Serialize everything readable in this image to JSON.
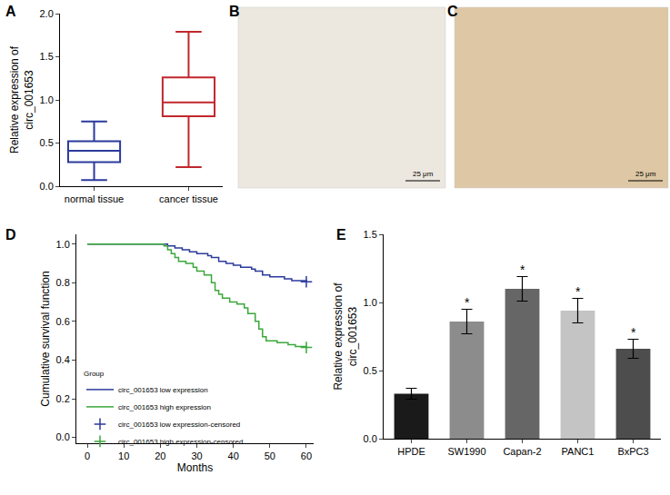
{
  "chart_data": [
    {
      "type": "box",
      "title": "A",
      "y_label": "Relative expression of\ncirc_001653",
      "categories": [
        "normal tissue",
        "cancer tissue"
      ],
      "series": [
        {
          "name": "normal tissue",
          "color": "#2b3a9c",
          "min": 0.07,
          "q1": 0.28,
          "median": 0.41,
          "q3": 0.52,
          "max": 0.75
        },
        {
          "name": "cancer tissue",
          "color": "#c1272d",
          "min": 0.22,
          "q1": 0.81,
          "median": 0.97,
          "q3": 1.26,
          "max": 1.79
        }
      ],
      "ylim": [
        0,
        2.0
      ],
      "yticks": [
        {
          "value": 0,
          "label": "0.0"
        },
        {
          "value": 0.5,
          "label": "0.5"
        },
        {
          "value": 1.0,
          "label": "1.0"
        },
        {
          "value": 1.5,
          "label": "1.5"
        },
        {
          "value": 2.0,
          "label": "2.0"
        }
      ]
    },
    {
      "type": "image",
      "title": "B",
      "scale_bar": "25 μm",
      "color": "#ece7df"
    },
    {
      "type": "image",
      "title": "C",
      "scale_bar": "25 μm",
      "color": "#ddc7a4"
    },
    {
      "type": "line",
      "title": "D",
      "x_label": "Months",
      "y_label": "Cumulative survival function",
      "legend": "lower left",
      "legend_title": "Group",
      "series": [
        {
          "name": "circ_001653 low expression",
          "color": "#2b3a9c",
          "line_style": "step",
          "x": [
            0,
            21,
            22,
            24,
            26,
            28,
            30,
            33,
            34,
            36,
            38,
            40,
            42,
            45,
            46,
            48,
            50,
            54,
            56,
            60
          ],
          "values": [
            1.0,
            1.0,
            0.99,
            0.98,
            0.97,
            0.96,
            0.95,
            0.94,
            0.93,
            0.91,
            0.9,
            0.89,
            0.88,
            0.87,
            0.86,
            0.84,
            0.83,
            0.82,
            0.81,
            0.805
          ]
        },
        {
          "name": "circ_001653 high expression",
          "color": "#3aa83a",
          "line_style": "step",
          "x": [
            0,
            20,
            21,
            22,
            23,
            24,
            25,
            27,
            29,
            30,
            32,
            34,
            35,
            36,
            37,
            39,
            41,
            43,
            44,
            46,
            47,
            48,
            49,
            52,
            55,
            57,
            60
          ],
          "values": [
            1.0,
            1.0,
            0.99,
            0.97,
            0.95,
            0.93,
            0.91,
            0.9,
            0.88,
            0.86,
            0.84,
            0.8,
            0.76,
            0.74,
            0.72,
            0.7,
            0.69,
            0.67,
            0.64,
            0.6,
            0.56,
            0.52,
            0.5,
            0.49,
            0.48,
            0.47,
            0.465
          ]
        },
        {
          "name": "circ_001653 low expression-censored",
          "color": "#2b3a9c",
          "marker": "cross",
          "x": [
            60
          ],
          "values": [
            0.805
          ]
        },
        {
          "name": "circ_001653 high expression-censored",
          "color": "#3aa83a",
          "marker": "cross",
          "x": [
            60
          ],
          "values": [
            0.465
          ]
        }
      ],
      "xlim": [
        -3,
        62
      ],
      "xticks": [
        0,
        10,
        20,
        30,
        40,
        50,
        60
      ],
      "ylim": [
        -0.03,
        1.05
      ],
      "yticks": [
        {
          "value": 0,
          "label": "0.0"
        },
        {
          "value": 0.2,
          "label": "0.2"
        },
        {
          "value": 0.4,
          "label": "0.4"
        },
        {
          "value": 0.6,
          "label": "0.6"
        },
        {
          "value": 0.8,
          "label": "0.8"
        },
        {
          "value": 1.0,
          "label": "1.0"
        }
      ]
    },
    {
      "type": "bar",
      "title": "E",
      "y_label": "Relative expression of\ncirc_001653",
      "categories": [
        "HPDE",
        "SW1990",
        "Capan-2",
        "PANC1",
        "BxPC3"
      ],
      "values": [
        0.33,
        0.86,
        1.1,
        0.94,
        0.66
      ],
      "errors": [
        0.04,
        0.09,
        0.09,
        0.09,
        0.07
      ],
      "colors": [
        "#1a1a1a",
        "#8c8c8c",
        "#666666",
        "#c4c4c4",
        "#4d4d4d"
      ],
      "annotations": [
        {
          "category": "SW1990",
          "text": "*"
        },
        {
          "category": "Capan-2",
          "text": "*"
        },
        {
          "category": "PANC1",
          "text": "*"
        },
        {
          "category": "BxPC3",
          "text": "*"
        }
      ],
      "ylim": [
        0,
        1.5
      ],
      "yticks": [
        {
          "value": 0,
          "label": "0.0"
        },
        {
          "value": 0.5,
          "label": "0.5"
        },
        {
          "value": 1.0,
          "label": "1.0"
        },
        {
          "value": 1.5,
          "label": "1.5"
        }
      ]
    }
  ]
}
